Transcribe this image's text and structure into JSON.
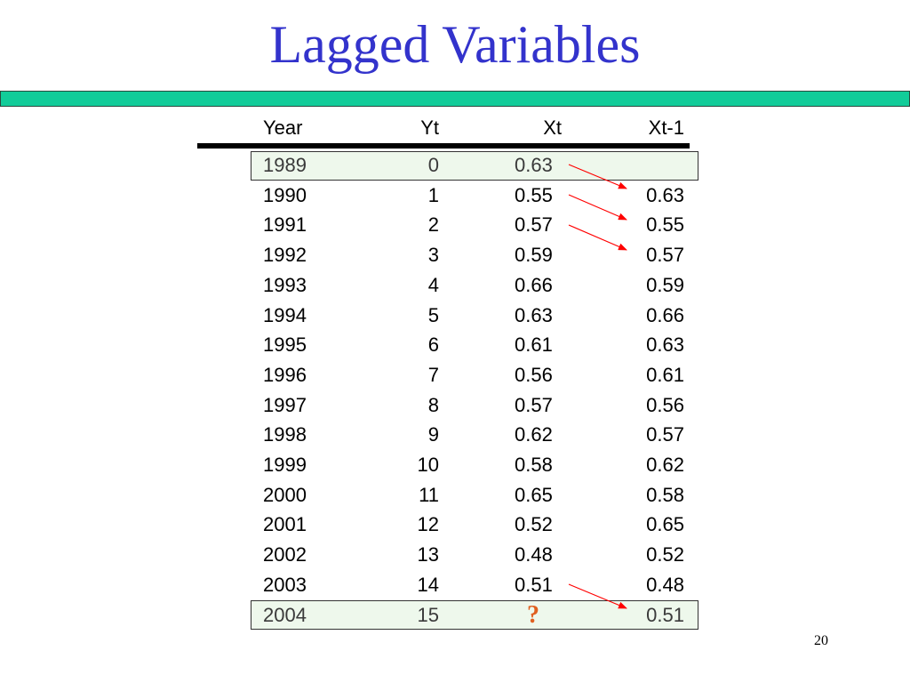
{
  "title": "Lagged Variables",
  "headers": {
    "year": "Year",
    "yt": "Yt",
    "xt": "Xt",
    "xt_lag": "Xt-1"
  },
  "rows": [
    {
      "year": "1989",
      "yt": "0",
      "xt": "0.63",
      "xt_lag": ""
    },
    {
      "year": "1990",
      "yt": "1",
      "xt": "0.55",
      "xt_lag": "0.63"
    },
    {
      "year": "1991",
      "yt": "2",
      "xt": "0.57",
      "xt_lag": "0.55"
    },
    {
      "year": "1992",
      "yt": "3",
      "xt": "0.59",
      "xt_lag": "0.57"
    },
    {
      "year": "1993",
      "yt": "4",
      "xt": "0.66",
      "xt_lag": "0.59"
    },
    {
      "year": "1994",
      "yt": "5",
      "xt": "0.63",
      "xt_lag": "0.66"
    },
    {
      "year": "1995",
      "yt": "6",
      "xt": "0.61",
      "xt_lag": "0.63"
    },
    {
      "year": "1996",
      "yt": "7",
      "xt": "0.56",
      "xt_lag": "0.61"
    },
    {
      "year": "1997",
      "yt": "8",
      "xt": "0.57",
      "xt_lag": "0.56"
    },
    {
      "year": "1998",
      "yt": "9",
      "xt": "0.62",
      "xt_lag": "0.57"
    },
    {
      "year": "1999",
      "yt": "10",
      "xt": "0.58",
      "xt_lag": "0.62"
    },
    {
      "year": "2000",
      "yt": "11",
      "xt": "0.65",
      "xt_lag": "0.58"
    },
    {
      "year": "2001",
      "yt": "12",
      "xt": "0.52",
      "xt_lag": "0.65"
    },
    {
      "year": "2002",
      "yt": "13",
      "xt": "0.48",
      "xt_lag": "0.52"
    },
    {
      "year": "2003",
      "yt": "14",
      "xt": "0.51",
      "xt_lag": "0.48"
    },
    {
      "year": "2004",
      "yt": "15",
      "xt": "?",
      "xt_lag": "0.51"
    }
  ],
  "page_number": "20",
  "colors": {
    "title": "#3333cc",
    "title_rule": "#11cc99",
    "highlight_row": "#eef8ec",
    "arrow": "#ff0000",
    "question_mark": "#e06020"
  }
}
